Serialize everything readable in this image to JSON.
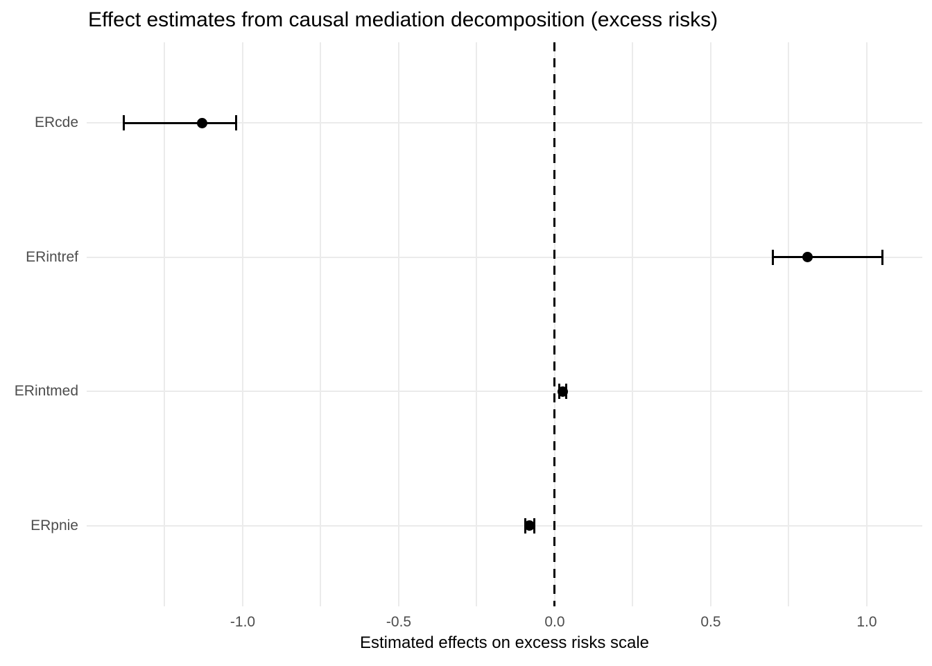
{
  "title": "Effect estimates from causal mediation decomposition (excess risks)",
  "chart_data": {
    "type": "errorbar",
    "orientation": "horizontal",
    "title": "Effect estimates from causal mediation decomposition (excess risks)",
    "xlabel": "Estimated effects on excess risks scale",
    "ylabel": "",
    "categories": [
      "ERcde",
      "ERintref",
      "ERintmed",
      "ERpnie"
    ],
    "series": [
      {
        "name": "estimate",
        "values": [
          -1.13,
          0.81,
          0.026,
          -0.08
        ]
      },
      {
        "name": "ci_lower",
        "values": [
          -1.38,
          0.7,
          0.015,
          -0.094
        ]
      },
      {
        "name": "ci_upper",
        "values": [
          -1.02,
          1.05,
          0.037,
          -0.065
        ]
      }
    ],
    "xlim": [
      -1.5,
      1.1778
    ],
    "x_major_ticks": [
      -1.0,
      -0.5,
      0.0,
      0.5,
      1.0
    ],
    "x_tick_labels": [
      "-1.0",
      "-0.5",
      "0.0",
      "0.5",
      "1.0"
    ],
    "x_minor_gridlines": [
      -1.25,
      -0.75,
      -0.25,
      0.25,
      0.75
    ],
    "reference_line_x": 0,
    "grid": "on",
    "legend": "none",
    "colors": {
      "point": "#000000",
      "errorbar": "#000000",
      "grid": "#ebebeb",
      "axis_text": "#4d4d4d",
      "title_text": "#000000",
      "reference_line": "#000000",
      "background": "#ffffff"
    }
  }
}
